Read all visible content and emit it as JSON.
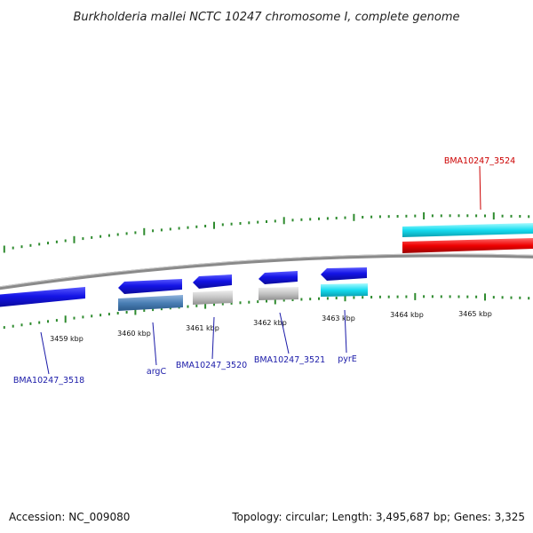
{
  "title": "Burkholderia mallei NCTC 10247 chromosome I, complete genome",
  "footer": {
    "accession": "Accession: NC_009080",
    "summary": "Topology: circular; Length: 3,495,687 bp; Genes: 3,325"
  },
  "colors": {
    "backbone": "#8a8a8a",
    "tick": "#2e8b2e",
    "label_blue": "#1a1aa8",
    "label_red": "#cc0000",
    "gene_blue": "#1414e6",
    "gene_steel": "#4a7fb5",
    "gene_grey": "#c4c4c4",
    "gene_cyan": "#16dcf0",
    "gene_red": "#ee0000"
  },
  "scale": {
    "unit": "kbp",
    "labels": [
      "3459 kbp",
      "3460 kbp",
      "3461 kbp",
      "3462 kbp",
      "3463 kbp",
      "3464 kbp",
      "3465 kbp"
    ]
  },
  "genes": [
    {
      "name": "BMA10247_3518",
      "color": "gene_blue",
      "label_color": "label_blue"
    },
    {
      "name": "argC",
      "color": "gene_blue",
      "label_color": "label_blue"
    },
    {
      "name": "BMA10247_3520",
      "color": "gene_blue",
      "label_color": "label_blue"
    },
    {
      "name": "BMA10247_3521",
      "color": "gene_blue",
      "label_color": "label_blue"
    },
    {
      "name": "pyrE",
      "color": "gene_blue",
      "label_color": "label_blue"
    },
    {
      "name": "BMA10247_3524",
      "color": "gene_cyan",
      "label_color": "label_red"
    }
  ]
}
